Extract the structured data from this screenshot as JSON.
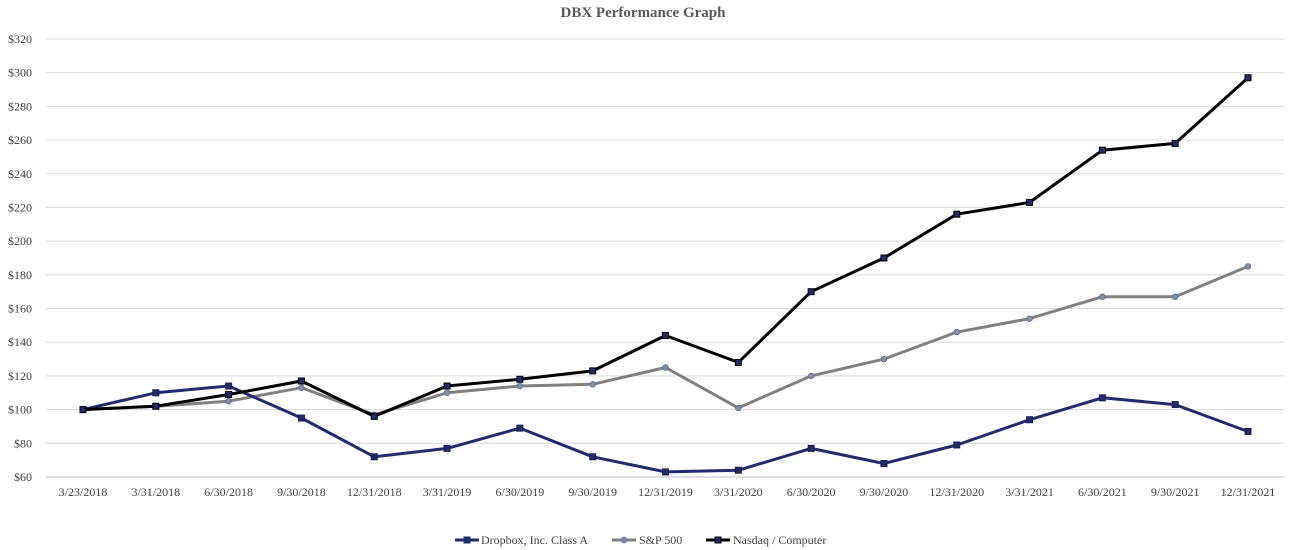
{
  "chart_data": {
    "type": "line",
    "title": "DBX Performance Graph",
    "xlabel": "",
    "ylabel": "",
    "ylim": [
      60,
      320
    ],
    "y_ticks": [
      60,
      80,
      100,
      120,
      140,
      160,
      180,
      200,
      220,
      240,
      260,
      280,
      300,
      320
    ],
    "y_tick_labels": [
      "$60",
      "$80",
      "$100",
      "$120",
      "$140",
      "$160",
      "$180",
      "$200",
      "$220",
      "$240",
      "$260",
      "$280",
      "$300",
      "$320"
    ],
    "grid": true,
    "legend_position": "bottom",
    "categories": [
      "3/23/2018",
      "3/31/2018",
      "6/30/2018",
      "9/30/2018",
      "12/31/2018",
      "3/31/2019",
      "6/30/2019",
      "9/30/2019",
      "12/31/2019",
      "3/31/2020",
      "6/30/2020",
      "9/30/2020",
      "12/31/2020",
      "3/31/2021",
      "6/30/2021",
      "9/30/2021",
      "12/31/2021"
    ],
    "series": [
      {
        "name": "Dropbox, Inc. Class A",
        "color": "#1f2d6e",
        "marker": "square",
        "values": [
          100,
          110,
          114,
          95,
          72,
          77,
          89,
          72,
          63,
          64,
          77,
          68,
          79,
          94,
          107,
          103,
          87
        ]
      },
      {
        "name": "S&P 500",
        "color": "#808080",
        "marker": "circle",
        "values": [
          100,
          102,
          105,
          113,
          97,
          110,
          114,
          115,
          125,
          101,
          120,
          130,
          146,
          154,
          167,
          167,
          185
        ]
      },
      {
        "name": "Nasdaq / Computer",
        "color": "#000000",
        "marker": "square",
        "values": [
          100,
          102,
          109,
          117,
          96,
          114,
          118,
          123,
          144,
          128,
          170,
          190,
          216,
          223,
          254,
          258,
          297
        ]
      }
    ]
  }
}
